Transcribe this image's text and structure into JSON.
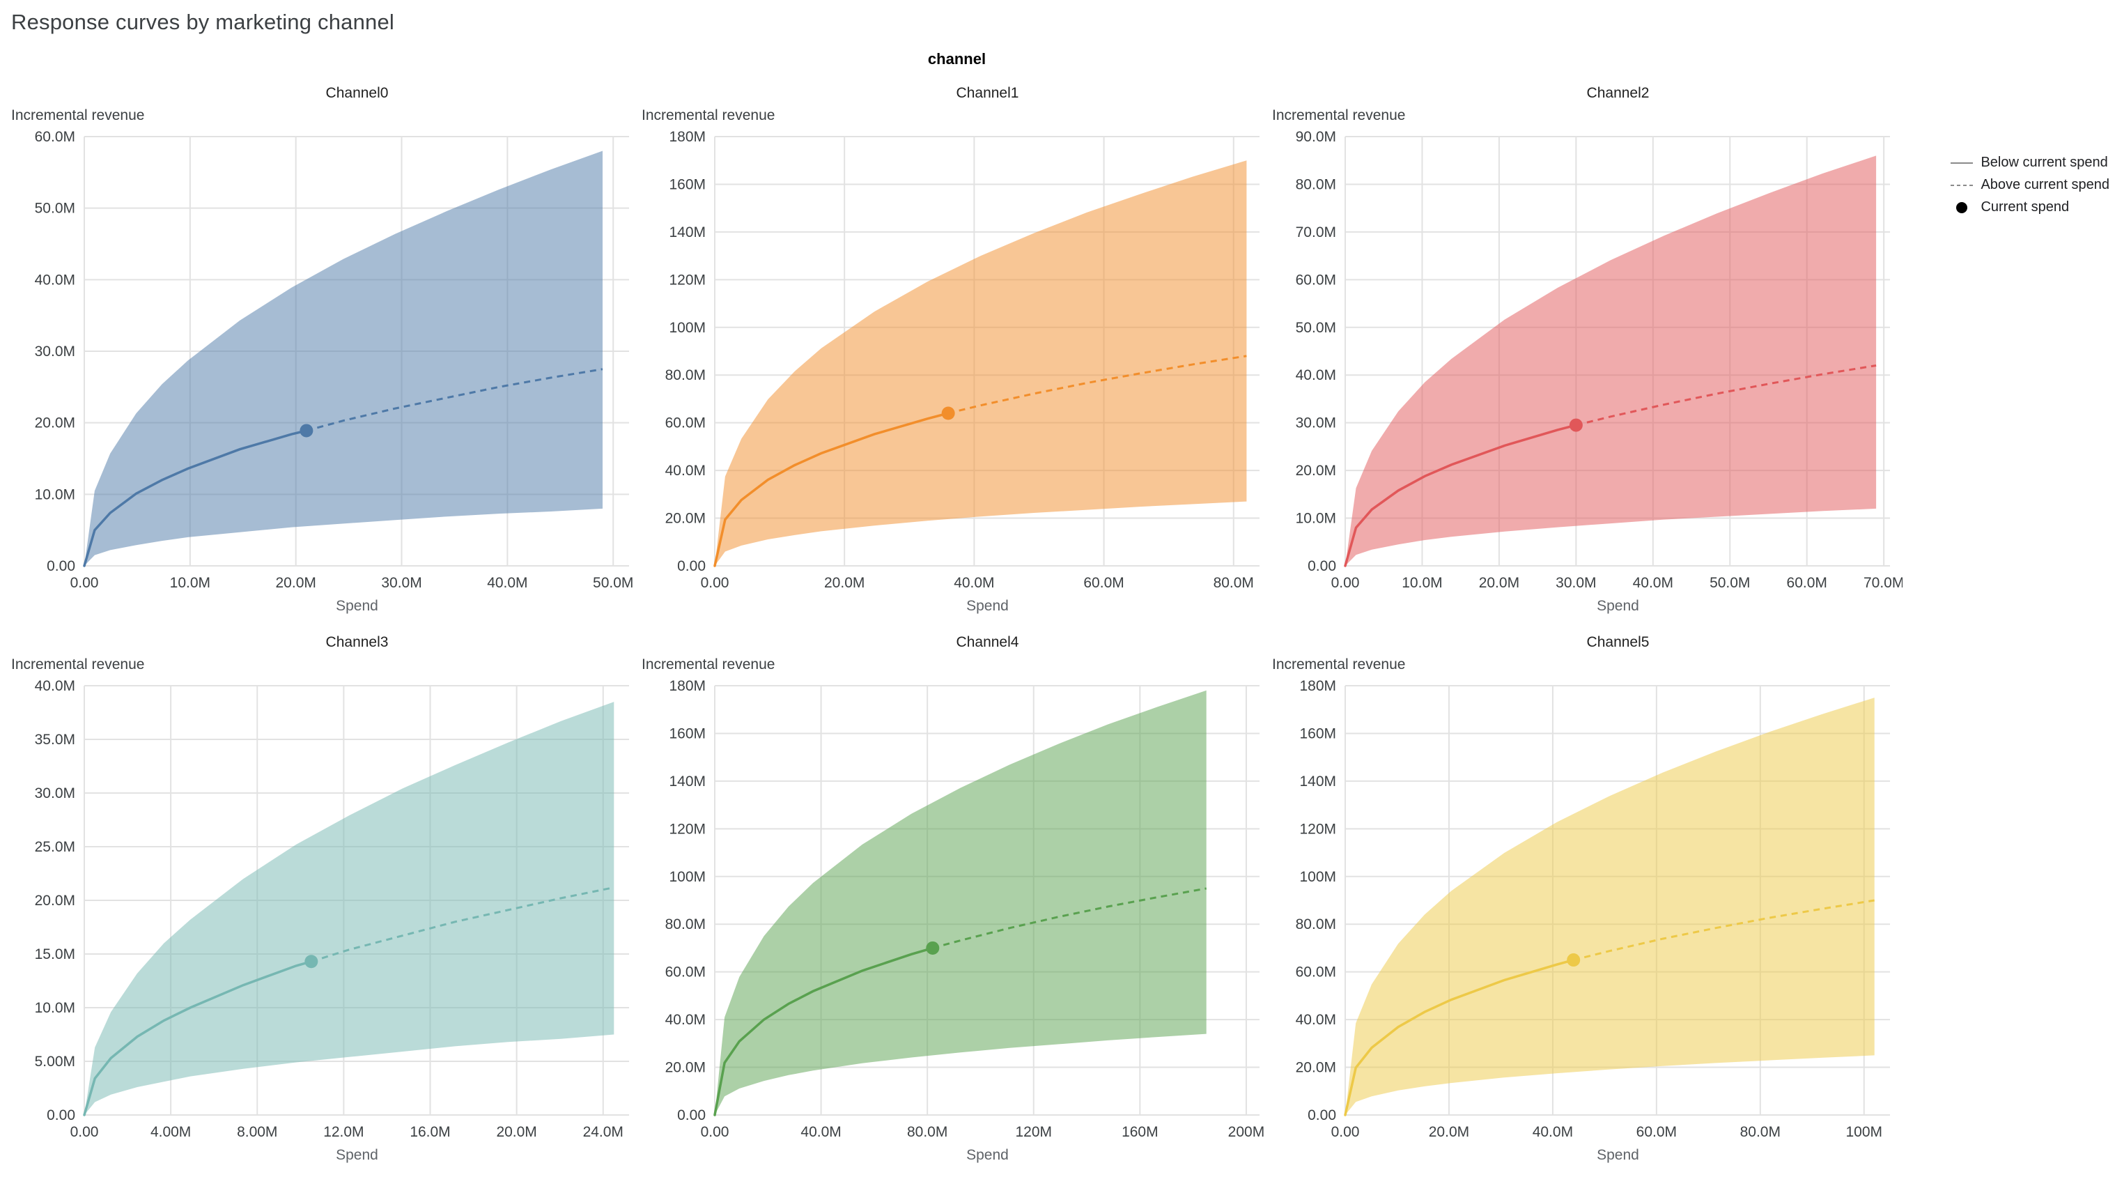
{
  "page": {
    "title": "Response curves by marketing channel",
    "facet_header": "channel"
  },
  "legend": {
    "items": [
      {
        "label": "Below current spend",
        "marker": "solid-line"
      },
      {
        "label": "Above current spend",
        "marker": "dashed-line"
      },
      {
        "label": "Current spend",
        "marker": "dot"
      }
    ]
  },
  "chart_data": [
    {
      "type": "line",
      "title": "Channel0",
      "xlabel": "Spend",
      "ylabel": "Incremental revenue",
      "units": "millions",
      "grid": true,
      "color": "#4e79a7",
      "xlim": [
        0,
        51.5
      ],
      "ylim": [
        0,
        60
      ],
      "xticks": {
        "values": [
          0,
          10,
          20,
          30,
          40,
          50
        ],
        "labels": [
          "0.00",
          "10.0M",
          "20.0M",
          "30.0M",
          "40.0M",
          "50.0M"
        ]
      },
      "yticks": {
        "values": [
          0,
          10,
          20,
          30,
          40,
          50,
          60
        ],
        "labels": [
          "0.00",
          "10.0M",
          "20.0M",
          "30.0M",
          "40.0M",
          "50.0M",
          "60.0M"
        ]
      },
      "x": [
        0,
        0.98,
        2.45,
        4.9,
        7.35,
        9.8,
        14.7,
        19.6,
        24.5,
        29.4,
        34.3,
        39.2,
        44.1,
        49
      ],
      "mean": [
        0,
        5.0,
        7.4,
        10.1,
        12.0,
        13.6,
        16.3,
        18.4,
        20.3,
        22.0,
        23.5,
        25.0,
        26.3,
        27.5
      ],
      "band_upper": [
        0,
        10.5,
        15.7,
        21.3,
        25.4,
        28.7,
        34.3,
        38.9,
        42.9,
        46.4,
        49.6,
        52.6,
        55.4,
        58
      ],
      "band_lower": [
        0,
        1.5,
        2.2,
        2.9,
        3.5,
        4.0,
        4.7,
        5.4,
        5.9,
        6.4,
        6.9,
        7.3,
        7.6,
        8
      ],
      "current_spend": {
        "x": 21,
        "y": 18.9
      }
    },
    {
      "type": "line",
      "title": "Channel1",
      "xlabel": "Spend",
      "ylabel": "Incremental revenue",
      "units": "millions",
      "grid": true,
      "color": "#f28e2b",
      "xlim": [
        0,
        84
      ],
      "ylim": [
        0,
        180
      ],
      "xticks": {
        "values": [
          0,
          20,
          40,
          60,
          80
        ],
        "labels": [
          "0.00",
          "20.0M",
          "40.0M",
          "60.0M",
          "80.0M"
        ]
      },
      "yticks": {
        "values": [
          0,
          20,
          40,
          60,
          80,
          100,
          120,
          140,
          160,
          180
        ],
        "labels": [
          "0.00",
          "20.0M",
          "40.0M",
          "60.0M",
          "80.0M",
          "100M",
          "120M",
          "140M",
          "160M",
          "180M"
        ]
      },
      "x": [
        0,
        1.6,
        4.1,
        8.2,
        12.3,
        16.4,
        24.6,
        32.8,
        41,
        49.2,
        57.4,
        65.6,
        73.8,
        82
      ],
      "mean": [
        0,
        19.4,
        27.6,
        36.1,
        42.2,
        47.2,
        55.2,
        61.7,
        67.3,
        72.2,
        76.7,
        80.7,
        84.5,
        88
      ],
      "band_upper": [
        0,
        37.5,
        53.3,
        69.8,
        81.5,
        91.2,
        106.6,
        119.2,
        130.0,
        139.5,
        148.2,
        155.9,
        163.3,
        170
      ],
      "band_lower": [
        0,
        6.0,
        8.5,
        11.1,
        12.9,
        14.5,
        16.9,
        18.9,
        20.7,
        22.2,
        23.5,
        24.8,
        25.9,
        27
      ],
      "current_spend": {
        "x": 36,
        "y": 64
      }
    },
    {
      "type": "line",
      "title": "Channel2",
      "xlabel": "Spend",
      "ylabel": "Incremental revenue",
      "units": "millions",
      "grid": true,
      "color": "#e15759",
      "xlim": [
        0,
        70.8
      ],
      "ylim": [
        0,
        90
      ],
      "xticks": {
        "values": [
          0,
          10,
          20,
          30,
          40,
          50,
          60,
          70
        ],
        "labels": [
          "0.00",
          "10.0M",
          "20.0M",
          "30.0M",
          "40.0M",
          "50.0M",
          "60.0M",
          "70.0M"
        ]
      },
      "yticks": {
        "values": [
          0,
          10,
          20,
          30,
          40,
          50,
          60,
          70,
          80,
          90
        ],
        "labels": [
          "0.00",
          "10.0M",
          "20.0M",
          "30.0M",
          "40.0M",
          "50.0M",
          "60.0M",
          "70.0M",
          "80.0M",
          "90.0M"
        ]
      },
      "x": [
        0,
        1.4,
        3.45,
        6.9,
        10.35,
        13.8,
        20.7,
        27.6,
        34.5,
        41.4,
        48.3,
        55.2,
        62.1,
        69
      ],
      "mean": [
        0,
        8.0,
        11.8,
        15.8,
        18.8,
        21.2,
        25.2,
        28.5,
        31.3,
        33.8,
        36.1,
        38.2,
        40.2,
        42
      ],
      "band_upper": [
        0,
        16.3,
        24.1,
        32.4,
        38.5,
        43.4,
        51.6,
        58.3,
        64.1,
        69.2,
        73.9,
        78.2,
        82.3,
        86
      ],
      "band_lower": [
        0,
        2.3,
        3.4,
        4.5,
        5.4,
        6.1,
        7.2,
        8.1,
        8.9,
        9.7,
        10.3,
        10.9,
        11.5,
        12
      ],
      "current_spend": {
        "x": 30,
        "y": 29.5
      }
    },
    {
      "type": "line",
      "title": "Channel3",
      "xlabel": "Spend",
      "ylabel": "Incremental revenue",
      "units": "millions",
      "grid": true,
      "color": "#76b7b2",
      "xlim": [
        0,
        25.2
      ],
      "ylim": [
        0,
        40
      ],
      "xticks": {
        "values": [
          0,
          4,
          8,
          12,
          16,
          20,
          24
        ],
        "labels": [
          "0.00",
          "4.00M",
          "8.00M",
          "12.0M",
          "16.0M",
          "20.0M",
          "24.0M"
        ]
      },
      "yticks": {
        "values": [
          0,
          5,
          10,
          15,
          20,
          25,
          30,
          35,
          40
        ],
        "labels": [
          "0.00",
          "5.00M",
          "10.0M",
          "15.0M",
          "20.0M",
          "25.0M",
          "30.0M",
          "35.0M",
          "40.0M"
        ]
      },
      "x": [
        0,
        0.49,
        1.23,
        2.45,
        3.68,
        4.9,
        7.35,
        9.8,
        12.25,
        14.7,
        17.15,
        19.6,
        22.05,
        24.5
      ],
      "mean": [
        0,
        3.4,
        5.3,
        7.3,
        8.8,
        10.0,
        12.1,
        13.9,
        15.4,
        16.7,
        18.0,
        19.1,
        20.2,
        21.2
      ],
      "band_upper": [
        0,
        6.3,
        9.6,
        13.2,
        16.0,
        18.2,
        22.0,
        25.2,
        27.9,
        30.4,
        32.6,
        34.7,
        36.7,
        38.5
      ],
      "band_lower": [
        0,
        1.2,
        1.9,
        2.6,
        3.1,
        3.6,
        4.3,
        4.9,
        5.4,
        5.9,
        6.4,
        6.8,
        7.1,
        7.5
      ],
      "current_spend": {
        "x": 10.5,
        "y": 14.3
      }
    },
    {
      "type": "line",
      "title": "Channel4",
      "xlabel": "Spend",
      "ylabel": "Incremental revenue",
      "units": "millions",
      "grid": true,
      "color": "#59a14f",
      "xlim": [
        0,
        205
      ],
      "ylim": [
        0,
        180
      ],
      "xticks": {
        "values": [
          0,
          40,
          80,
          120,
          160,
          200
        ],
        "labels": [
          "0.00",
          "40.0M",
          "80.0M",
          "120M",
          "160M",
          "200M"
        ]
      },
      "yticks": {
        "values": [
          0,
          20,
          40,
          60,
          80,
          100,
          120,
          140,
          160,
          180
        ],
        "labels": [
          "0.00",
          "20.0M",
          "40.0M",
          "60.0M",
          "80.0M",
          "100M",
          "120M",
          "140M",
          "160M",
          "180M"
        ]
      },
      "x": [
        0,
        3.7,
        9.25,
        18.5,
        27.75,
        37,
        55.5,
        74,
        92.5,
        111,
        129.5,
        148,
        166.5,
        185
      ],
      "mean": [
        0,
        21.9,
        30.9,
        40.0,
        46.6,
        51.9,
        60.5,
        67.4,
        73.2,
        78.4,
        83.1,
        87.4,
        91.3,
        95
      ],
      "band_upper": [
        0,
        41.0,
        57.9,
        75.0,
        87.4,
        97.3,
        113.4,
        126.3,
        137.2,
        146.9,
        155.7,
        163.8,
        171.1,
        178
      ],
      "band_lower": [
        0,
        7.8,
        11.1,
        14.3,
        16.7,
        18.6,
        21.7,
        24.1,
        26.2,
        28.1,
        29.7,
        31.3,
        32.7,
        34
      ],
      "current_spend": {
        "x": 82,
        "y": 70
      }
    },
    {
      "type": "line",
      "title": "Channel5",
      "xlabel": "Spend",
      "ylabel": "Incremental revenue",
      "units": "millions",
      "grid": true,
      "color": "#edc948",
      "xlim": [
        0,
        105
      ],
      "ylim": [
        0,
        180
      ],
      "xticks": {
        "values": [
          0,
          20,
          40,
          60,
          80,
          100
        ],
        "labels": [
          "0.00",
          "20.0M",
          "40.0M",
          "60.0M",
          "80.0M",
          "100M"
        ]
      },
      "yticks": {
        "values": [
          0,
          20,
          40,
          60,
          80,
          100,
          120,
          140,
          160,
          180
        ],
        "labels": [
          "0.00",
          "20.0M",
          "40.0M",
          "60.0M",
          "80.0M",
          "100M",
          "120M",
          "140M",
          "160M",
          "180M"
        ]
      },
      "x": [
        0,
        2.04,
        5.1,
        10.2,
        15.3,
        20.4,
        30.6,
        40.8,
        51,
        61.2,
        71.4,
        81.6,
        91.8,
        102
      ],
      "mean": [
        0,
        19.8,
        28.2,
        36.9,
        43.2,
        48.3,
        56.5,
        63.1,
        68.8,
        73.9,
        78.4,
        82.6,
        86.4,
        90
      ],
      "band_upper": [
        0,
        38.5,
        54.8,
        71.8,
        84.0,
        93.9,
        109.8,
        122.8,
        133.8,
        143.6,
        152.4,
        160.5,
        168.0,
        175
      ],
      "band_lower": [
        0,
        5.5,
        7.8,
        10.3,
        12.0,
        13.4,
        15.7,
        17.5,
        19.1,
        20.5,
        21.8,
        22.9,
        24.0,
        25
      ],
      "current_spend": {
        "x": 44,
        "y": 65
      }
    }
  ]
}
